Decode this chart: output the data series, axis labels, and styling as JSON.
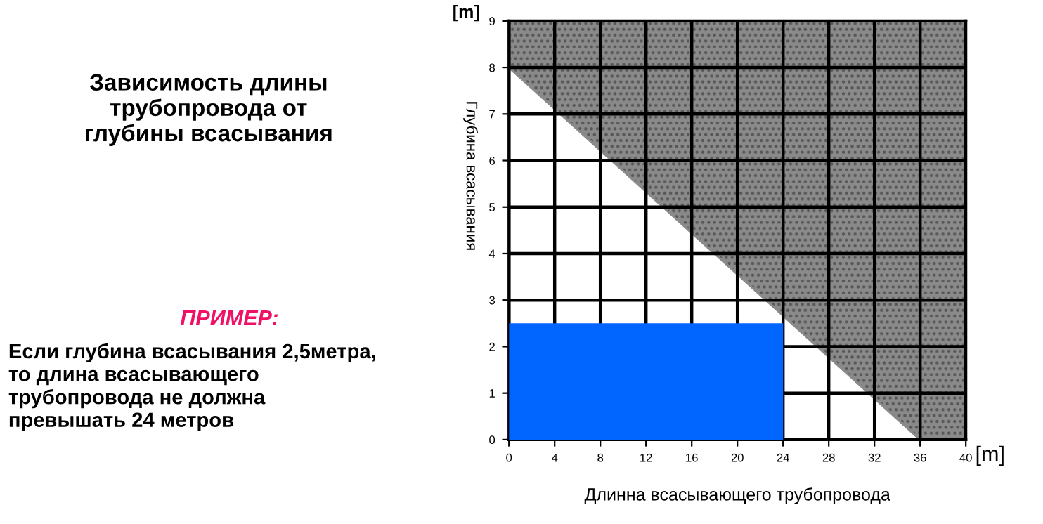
{
  "chart_data": {
    "type": "area",
    "title": "Зависимость длины\nтрубопровода от\nглубины всасывания",
    "xlabel": "Длинна всасывающего трубопровода",
    "ylabel": "Глубина всасывания",
    "series": [
      {
        "type": "line",
        "color": "#8a8a8a",
        "x": [
          0,
          36,
          40
        ],
        "values": [
          8,
          0,
          0
        ],
        "lower": [
          8,
          0,
          0
        ],
        "upper": [
          9,
          9,
          9
        ]
      },
      {
        "type": "area",
        "color": "#0066ff",
        "x": [
          0,
          24
        ],
        "values": [
          2.5,
          2.5
        ]
      }
    ],
    "xlim": [
      0,
      40
    ],
    "xticks": [
      0,
      4,
      8,
      12,
      16,
      20,
      24,
      28,
      32,
      36,
      40
    ],
    "ylim": [
      0,
      9
    ],
    "yticks": [
      0,
      1,
      2,
      3,
      4,
      5,
      6,
      7,
      8,
      9
    ],
    "grid": true,
    "annotations": [
      "[m]",
      "[m]",
      "ПРИМЕР:",
      "Если глубина всасывания 2,5метра,\nто длина всасывающего\nтрубопровода не должна\nпревышать 24 метров"
    ]
  }
}
